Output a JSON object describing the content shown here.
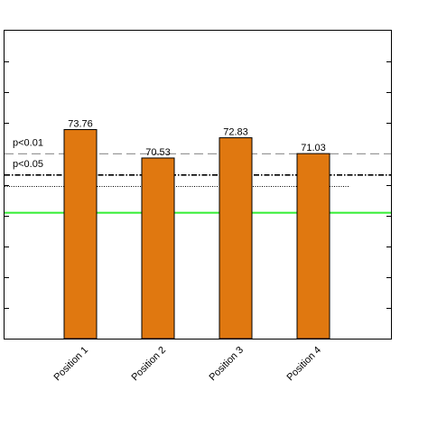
{
  "chart_data": {
    "type": "bar",
    "categories": [
      "Position 1",
      "Position 2",
      "Position 3",
      "Position 4"
    ],
    "values": [
      73.76,
      70.53,
      72.83,
      71.03
    ],
    "data_labels": [
      "73.76",
      "70.53",
      "72.83",
      "71.03"
    ],
    "bar_color": "#e07810",
    "ylim": [
      50,
      85
    ],
    "reference_lines": [
      {
        "label": "p<0.01",
        "value": 71.0,
        "style": "dashed",
        "color": "#999999"
      },
      {
        "label": "p<0.05",
        "value": 68.6,
        "style": "dashdot",
        "color": "#000000"
      },
      {
        "label": "",
        "value": 67.3,
        "style": "dotted",
        "color": "#000000"
      },
      {
        "label": "",
        "value": 64.3,
        "style": "solid",
        "color": "#33ee33"
      }
    ],
    "grid": false,
    "title": "",
    "xlabel": "",
    "ylabel": ""
  }
}
